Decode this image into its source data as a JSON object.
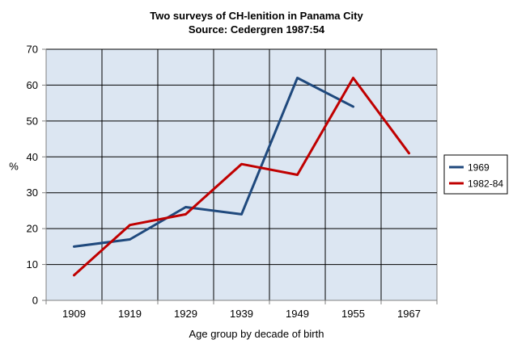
{
  "chart_data": {
    "type": "line",
    "title": "Two surveys of CH-lenition in Panama City",
    "subtitle": "Source: Cedergren 1987:54",
    "xlabel": "Age group by decade of birth",
    "ylabel": "%",
    "categories": [
      "1909",
      "1919",
      "1929",
      "1939",
      "1949",
      "1955",
      "1967"
    ],
    "ylim": [
      0,
      70
    ],
    "yticks": [
      0,
      10,
      20,
      30,
      40,
      50,
      60,
      70
    ],
    "grid": true,
    "legend": "right",
    "background_color": "#dce6f2",
    "series": [
      {
        "name": "1969",
        "color": "#1f497d",
        "values": [
          15,
          17,
          26,
          24,
          62,
          54,
          null
        ]
      },
      {
        "name": "1982-84",
        "color": "#c00000",
        "values": [
          7,
          21,
          24,
          38,
          35,
          62,
          41
        ]
      }
    ]
  }
}
